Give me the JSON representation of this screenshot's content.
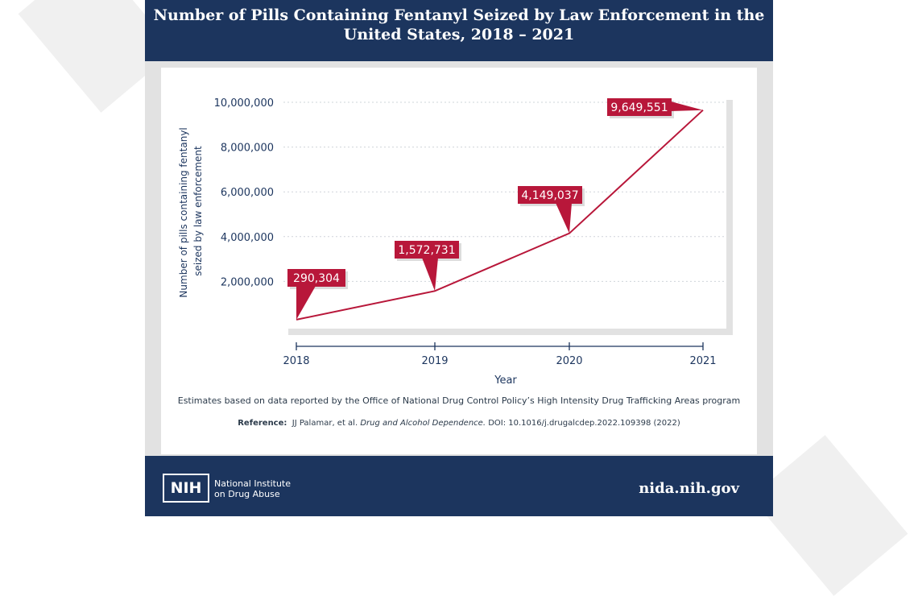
{
  "chart_data": {
    "type": "line",
    "title": "Number of Pills Containing Fentanyl Seized by Law Enforcement in the United States, 2018 – 2021",
    "x": [
      "2018",
      "2019",
      "2020",
      "2021"
    ],
    "series": [
      {
        "values": [
          290304,
          1572731,
          4149037,
          9649551
        ]
      }
    ],
    "data_labels": [
      "290,304",
      "1,572,731",
      "4,149,037",
      "9,649,551"
    ],
    "xlabel": "Year",
    "ylabel": "Number of pills containing fentanyl seized by law enforcement",
    "yticks": [
      "2,000,000",
      "4,000,000",
      "6,000,000",
      "8,000,000",
      "10,000,000"
    ],
    "ylim": [
      0,
      10000000
    ],
    "grid": true,
    "line_color": "#b8173a"
  },
  "note": "Estimates based on data reported by the Office of National Drug Control Policy’s High Intensity Drug Trafficking Areas program",
  "reference": {
    "label": "Reference:",
    "authors": "JJ Palamar, et al.",
    "journal": "Drug and Alcohol Dependence.",
    "doi": "DOI: 10.1016/j.drugalcdep.2022.109398 (2022)"
  },
  "footer": {
    "logo_text": "NIH",
    "org_line1": "National Institute",
    "org_line2": "on Drug Abuse",
    "site": "nida.nih.gov"
  },
  "colors": {
    "navy": "#1c355e",
    "accent": "#b8173a"
  }
}
